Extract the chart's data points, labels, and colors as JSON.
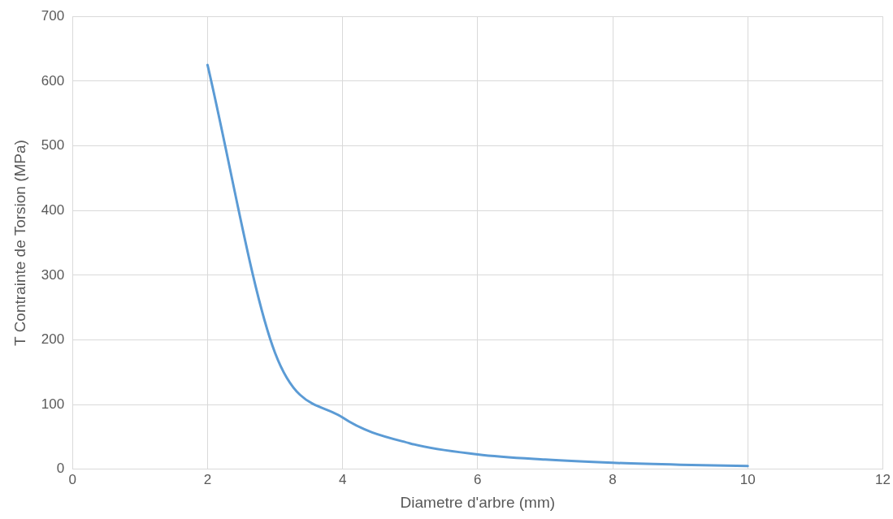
{
  "chart_data": {
    "type": "line",
    "xlabel": "Diametre d'arbre (mm)",
    "ylabel": "T Contrainte de Torsion (MPa)",
    "x": [
      2,
      3,
      4,
      5,
      6,
      7,
      8,
      9,
      10
    ],
    "series": [
      {
        "color": "#5b9bd5",
        "values": [
          625,
          180,
          80,
          40,
          23,
          15,
          10,
          7,
          5
        ]
      }
    ],
    "xlim": [
      0,
      12
    ],
    "xticks": [
      0,
      2,
      4,
      6,
      8,
      10,
      12
    ],
    "ylim": [
      0,
      700
    ],
    "yticks": [
      0,
      100,
      200,
      300,
      400,
      500,
      600,
      700
    ],
    "grid": true,
    "legend": false,
    "marker": "none",
    "line_style": "solid"
  }
}
